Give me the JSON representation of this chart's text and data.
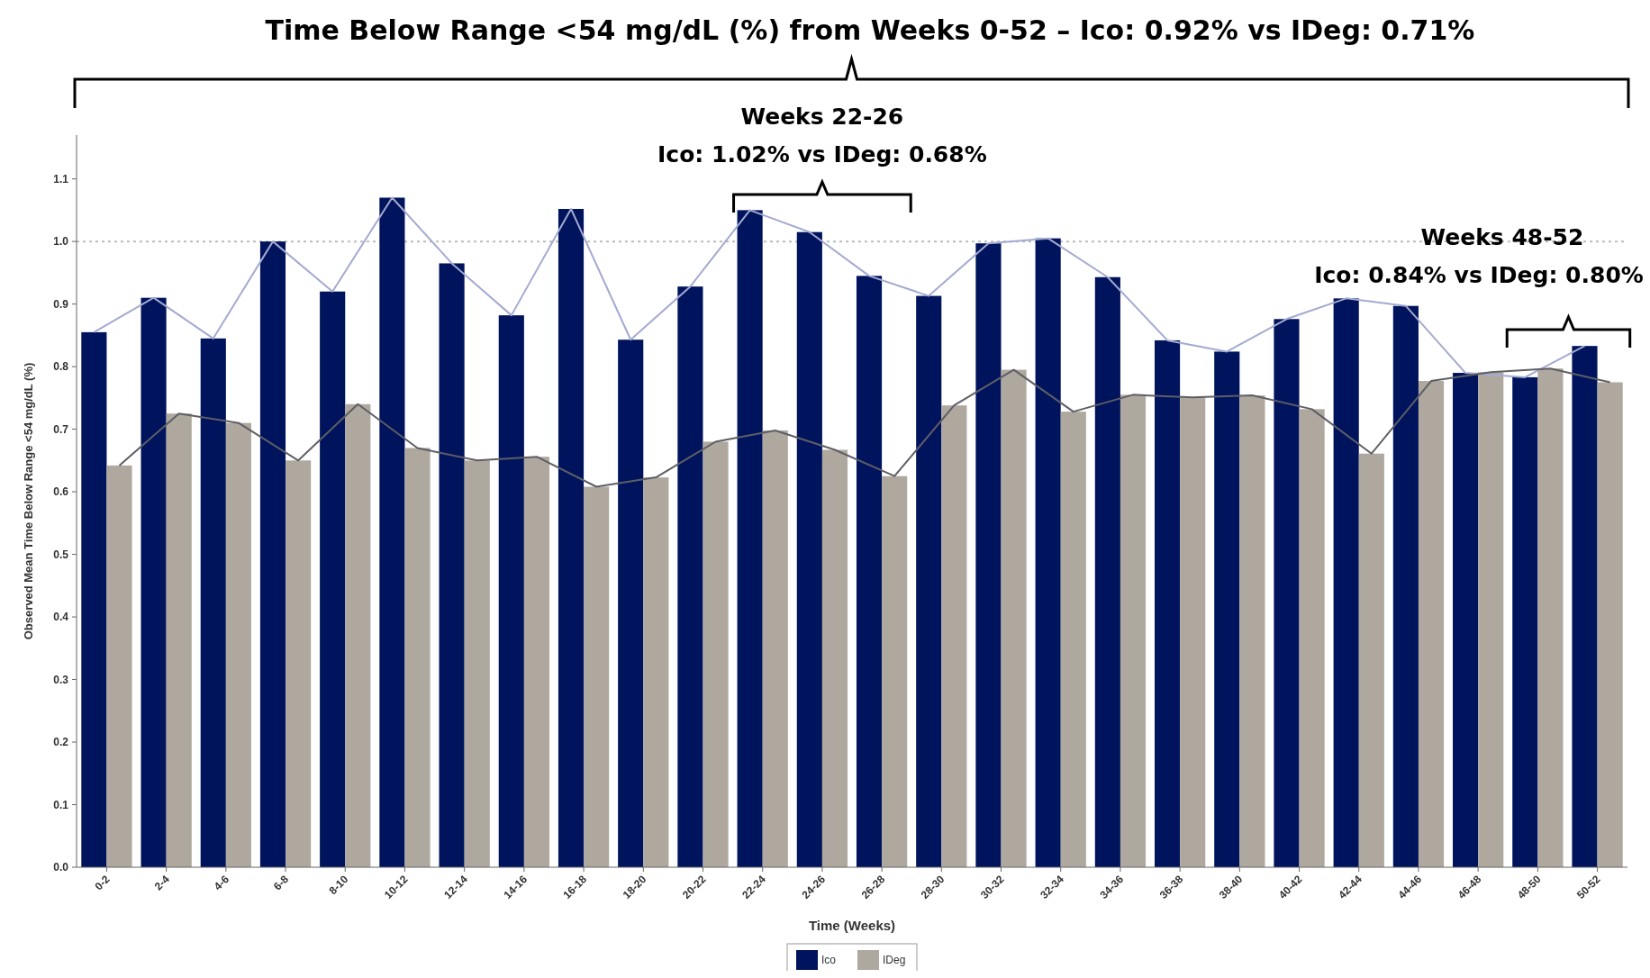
{
  "chart_data": {
    "type": "bar",
    "title": "Time Below Range <54 mg/dL (%) from Weeks 0-52 – Ico: 0.92% vs IDeg: 0.71%",
    "xlabel": "Time (Weeks)",
    "ylabel": "Observed Mean Time Below Range <54 mg/dL (%)",
    "categories": [
      "0-2",
      "2-4",
      "4-6",
      "6-8",
      "8-10",
      "10-12",
      "12-14",
      "14-16",
      "16-18",
      "18-20",
      "20-22",
      "22-24",
      "24-26",
      "26-28",
      "28-30",
      "30-32",
      "32-34",
      "34-36",
      "36-38",
      "38-40",
      "40-42",
      "42-44",
      "44-46",
      "46-48",
      "48-50",
      "50-52"
    ],
    "series": [
      {
        "name": "Ico",
        "color": "#00135d",
        "values": [
          0.855,
          0.91,
          0.845,
          1.0,
          0.92,
          1.07,
          0.965,
          0.882,
          1.052,
          0.843,
          0.928,
          1.05,
          1.015,
          0.945,
          0.913,
          0.997,
          1.005,
          0.943,
          0.842,
          0.824,
          0.876,
          0.909,
          0.897,
          0.79,
          0.783,
          0.833
        ]
      },
      {
        "name": "IDeg",
        "color": "#aea89f",
        "values": [
          0.642,
          0.725,
          0.71,
          0.65,
          0.74,
          0.67,
          0.65,
          0.656,
          0.608,
          0.623,
          0.68,
          0.698,
          0.667,
          0.625,
          0.738,
          0.795,
          0.728,
          0.755,
          0.751,
          0.754,
          0.732,
          0.661,
          0.777,
          0.791,
          0.797,
          0.775
        ]
      },
      {
        "type": "line",
        "color": "#a3aad0",
        "values": [
          0.855,
          0.91,
          0.845,
          1.0,
          0.92,
          1.07,
          0.965,
          0.882,
          1.052,
          0.843,
          0.928,
          1.05,
          1.015,
          0.945,
          0.913,
          0.997,
          1.005,
          0.943,
          0.842,
          0.824,
          0.876,
          0.909,
          0.897,
          0.79,
          0.783,
          0.833
        ]
      },
      {
        "type": "line",
        "color": "#5e5e66",
        "values": [
          0.642,
          0.725,
          0.71,
          0.65,
          0.74,
          0.67,
          0.65,
          0.656,
          0.608,
          0.623,
          0.68,
          0.698,
          0.667,
          0.625,
          0.738,
          0.795,
          0.728,
          0.755,
          0.751,
          0.754,
          0.732,
          0.661,
          0.777,
          0.791,
          0.797,
          0.775
        ]
      }
    ],
    "ylim": [
      0,
      1.17
    ],
    "yticks": [
      {
        "value": 0,
        "label": "0.0"
      },
      0.1,
      0.2,
      0.3,
      0.4,
      0.5,
      0.6,
      0.7,
      0.8,
      0.9,
      {
        "value": 1,
        "label": "1.0"
      },
      1.1
    ],
    "grid": false,
    "legend": "bottom",
    "marker": "none",
    "line_style": "solid",
    "ref_lines": [
      {
        "axis": "y",
        "value": 1,
        "color": "#bbbbbb",
        "line_style": "dotted"
      }
    ],
    "annotations": [
      "Weeks 22-26",
      "Ico: 1.02% vs IDeg: 0.68%",
      "Weeks 48-52",
      "Ico: 0.84% vs IDeg: 0.80%"
    ]
  }
}
